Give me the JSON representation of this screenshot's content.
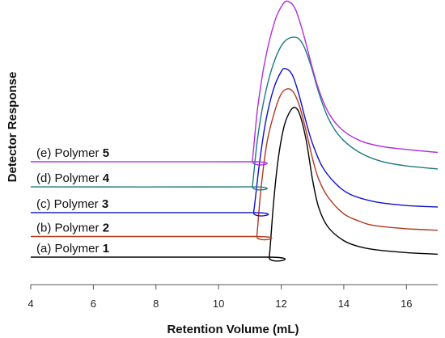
{
  "chart_data": {
    "type": "line",
    "title": "",
    "xlabel": "Retention Volume (mL)",
    "ylabel": "Detector Response",
    "xlim": [
      4,
      17
    ],
    "xticks": [
      4,
      6,
      8,
      10,
      12,
      14,
      16
    ],
    "y_ticks_shown": false,
    "grid": false,
    "legend": "inline-left",
    "series": [
      {
        "label_prefix": "(a) Polymer ",
        "label_num": "1",
        "color": "#000000",
        "baseline": 0.0,
        "onset": 11.62,
        "peak_x": 12.45,
        "peak": 1.0,
        "tail_end": 0.02,
        "points": [
          [
            4,
            0
          ],
          [
            11.55,
            0
          ],
          [
            11.62,
            0
          ],
          [
            11.75,
            0.35
          ],
          [
            11.9,
            0.65
          ],
          [
            12.1,
            0.88
          ],
          [
            12.3,
            0.98
          ],
          [
            12.45,
            1.0
          ],
          [
            12.6,
            0.95
          ],
          [
            12.8,
            0.78
          ],
          [
            13.0,
            0.52
          ],
          [
            13.2,
            0.33
          ],
          [
            13.5,
            0.2
          ],
          [
            14.0,
            0.11
          ],
          [
            14.5,
            0.07
          ],
          [
            15.0,
            0.05
          ],
          [
            16.0,
            0.03
          ],
          [
            17.0,
            0.02
          ]
        ]
      },
      {
        "label_prefix": "(b) Polymer ",
        "label_num": "2",
        "color": "#b03a1e",
        "baseline": 0.138,
        "onset": 11.22,
        "peak_x": 12.2,
        "peak": 1.125,
        "points": [
          [
            4,
            0.138
          ],
          [
            11.15,
            0.138
          ],
          [
            11.22,
            0.14
          ],
          [
            11.35,
            0.45
          ],
          [
            11.55,
            0.77
          ],
          [
            11.8,
            0.98
          ],
          [
            12.0,
            1.09
          ],
          [
            12.2,
            1.125
          ],
          [
            12.4,
            1.1
          ],
          [
            12.6,
            1.0
          ],
          [
            12.8,
            0.84
          ],
          [
            13.0,
            0.66
          ],
          [
            13.2,
            0.52
          ],
          [
            13.5,
            0.4
          ],
          [
            14.0,
            0.29
          ],
          [
            14.5,
            0.24
          ],
          [
            15.0,
            0.21
          ],
          [
            16.0,
            0.19
          ],
          [
            17.0,
            0.18
          ]
        ]
      },
      {
        "label_prefix": "(c) Polymer ",
        "label_num": "3",
        "color": "#1010cc",
        "baseline": 0.298,
        "onset": 11.12,
        "peak_x": 12.15,
        "peak": 1.26,
        "points": [
          [
            4,
            0.298
          ],
          [
            11.05,
            0.298
          ],
          [
            11.12,
            0.3
          ],
          [
            11.3,
            0.62
          ],
          [
            11.5,
            0.9
          ],
          [
            11.75,
            1.12
          ],
          [
            12.0,
            1.24
          ],
          [
            12.15,
            1.26
          ],
          [
            12.35,
            1.22
          ],
          [
            12.55,
            1.1
          ],
          [
            12.8,
            0.9
          ],
          [
            13.0,
            0.76
          ],
          [
            13.3,
            0.61
          ],
          [
            13.7,
            0.5
          ],
          [
            14.2,
            0.42
          ],
          [
            15.0,
            0.37
          ],
          [
            16.0,
            0.345
          ],
          [
            17.0,
            0.335
          ]
        ]
      },
      {
        "label_prefix": "(d) Polymer ",
        "label_num": "4",
        "color": "#1c7a80",
        "baseline": 0.47,
        "onset": 11.08,
        "peak_x": 12.45,
        "peak": 1.47,
        "points": [
          [
            4,
            0.47
          ],
          [
            11.02,
            0.47
          ],
          [
            11.08,
            0.475
          ],
          [
            11.25,
            0.8
          ],
          [
            11.5,
            1.1
          ],
          [
            11.8,
            1.32
          ],
          [
            12.1,
            1.44
          ],
          [
            12.45,
            1.47
          ],
          [
            12.7,
            1.42
          ],
          [
            12.95,
            1.28
          ],
          [
            13.2,
            1.1
          ],
          [
            13.5,
            0.93
          ],
          [
            13.9,
            0.8
          ],
          [
            14.5,
            0.7
          ],
          [
            15.2,
            0.64
          ],
          [
            16.0,
            0.61
          ],
          [
            17.0,
            0.59
          ]
        ]
      },
      {
        "label_prefix": "(e) Polymer ",
        "label_num": "5",
        "color": "#b030d8",
        "baseline": 0.638,
        "onset": 11.08,
        "peak_x": 12.22,
        "peak": 1.71,
        "points": [
          [
            4,
            0.638
          ],
          [
            11.02,
            0.638
          ],
          [
            11.08,
            0.645
          ],
          [
            11.25,
            1.0
          ],
          [
            11.5,
            1.33
          ],
          [
            11.8,
            1.58
          ],
          [
            12.05,
            1.69
          ],
          [
            12.22,
            1.71
          ],
          [
            12.45,
            1.66
          ],
          [
            12.7,
            1.5
          ],
          [
            12.95,
            1.3
          ],
          [
            13.2,
            1.12
          ],
          [
            13.5,
            0.97
          ],
          [
            13.9,
            0.86
          ],
          [
            14.5,
            0.78
          ],
          [
            15.2,
            0.74
          ],
          [
            16.0,
            0.72
          ],
          [
            17.0,
            0.7
          ]
        ]
      }
    ]
  }
}
